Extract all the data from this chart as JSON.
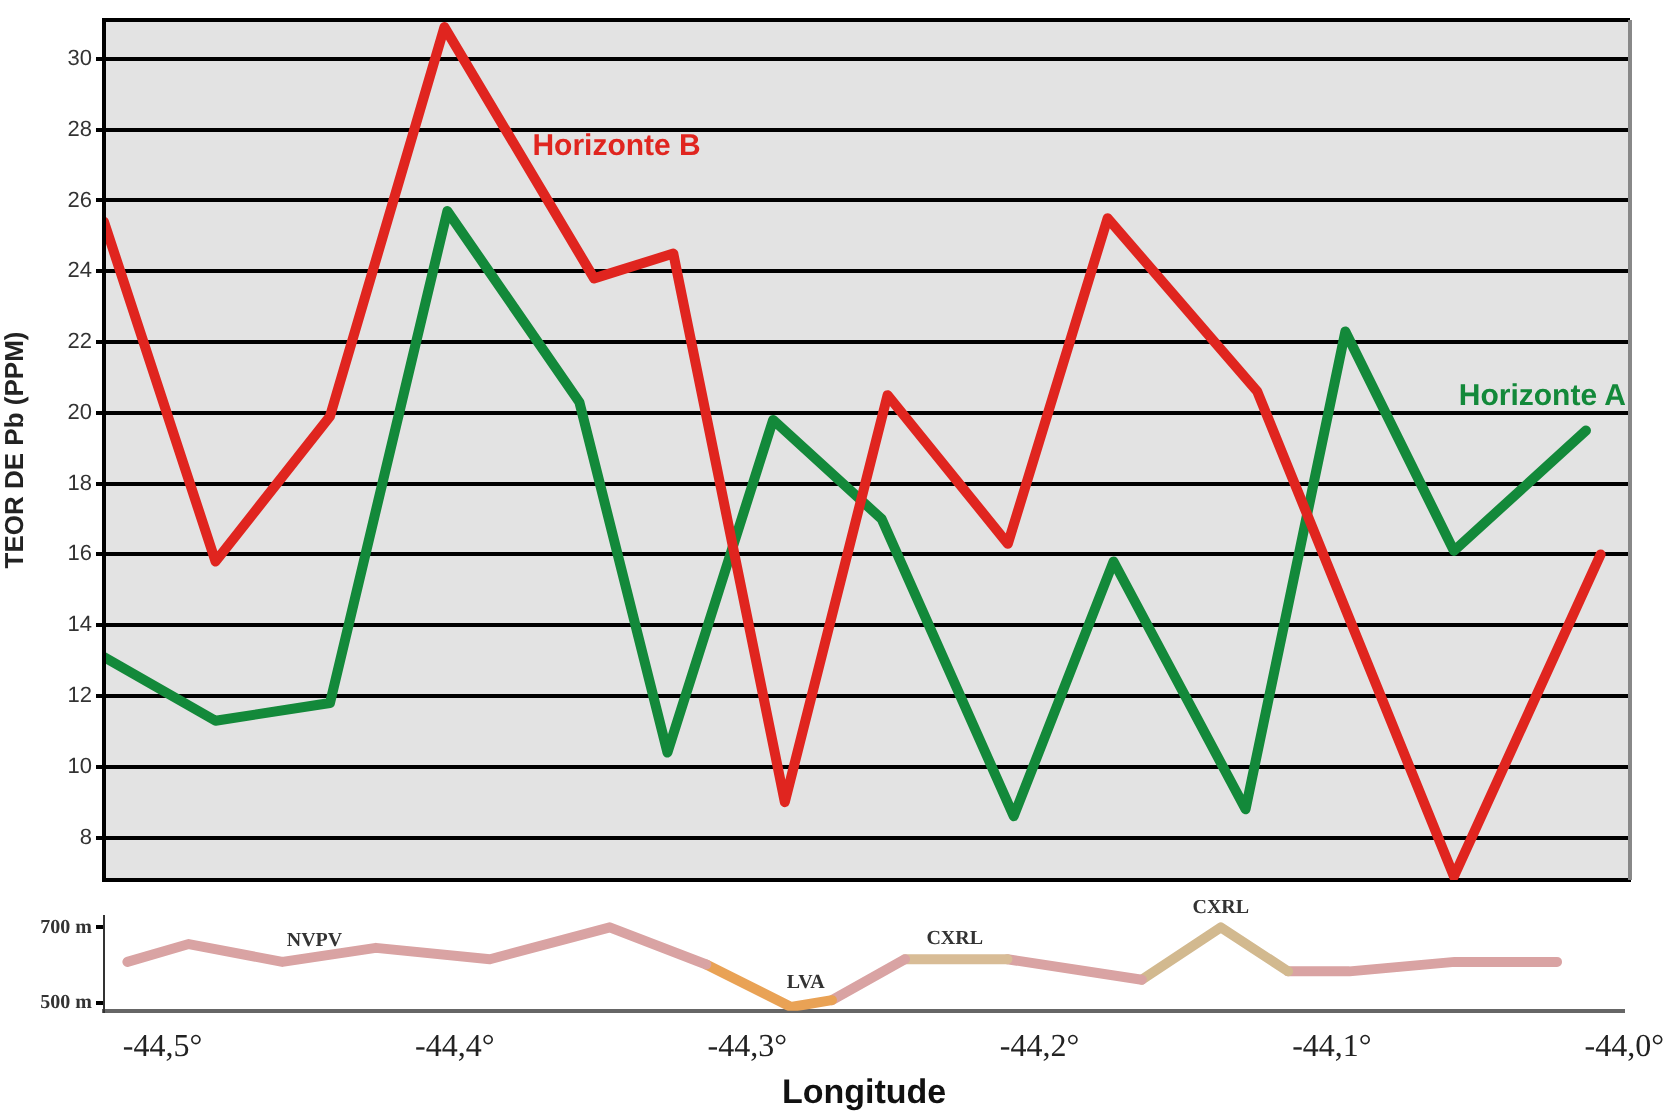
{
  "chart_data": [
    {
      "type": "line",
      "ylabel": "TEOR DE Pb (PPM)",
      "xlim": [
        -44.52,
        -44.0
      ],
      "ylim": [
        6.8,
        31.1
      ],
      "yticks": [
        8,
        10,
        12,
        14,
        16,
        18,
        20,
        22,
        24,
        26,
        28,
        30
      ],
      "grid": "y",
      "tick_labels": "y",
      "series": [
        {
          "name": "Horizonte B",
          "color": "#e0251f",
          "x": [
            -44.52,
            -44.482,
            -44.443,
            -44.404,
            -44.353,
            -44.326,
            -44.288,
            -44.253,
            -44.212,
            -44.178,
            -44.127,
            -44.06,
            -44.01
          ],
          "values": [
            25.4,
            15.8,
            19.9,
            30.9,
            23.8,
            24.5,
            9.0,
            20.5,
            16.3,
            25.5,
            20.6,
            6.9,
            16.0
          ]
        },
        {
          "name": "Horizonte A",
          "color": "#13893a",
          "x": [
            -44.52,
            -44.482,
            -44.443,
            -44.403,
            -44.358,
            -44.328,
            -44.292,
            -44.255,
            -44.21,
            -44.176,
            -44.131,
            -44.097,
            -44.06,
            -44.015
          ],
          "values": [
            13.1,
            11.3,
            11.8,
            25.7,
            20.3,
            10.4,
            19.8,
            17.0,
            8.6,
            15.8,
            8.8,
            22.3,
            16.1,
            19.5
          ]
        }
      ]
    },
    {
      "type": "line",
      "xlabel": "Longitude",
      "xlim": [
        -44.52,
        -44.0
      ],
      "xticks": [
        {
          "value": -44.5,
          "label": "-44,5°"
        },
        {
          "value": -44.4,
          "label": "-44,4°"
        },
        {
          "value": -44.3,
          "label": "-44,3°"
        },
        {
          "value": -44.2,
          "label": "-44,2°"
        },
        {
          "value": -44.1,
          "label": "-44,1°"
        },
        {
          "value": -44.0,
          "label": "-44,0°"
        }
      ],
      "ylim": [
        480,
        730
      ],
      "yticks": [
        {
          "value": 500,
          "label": "500 m"
        },
        {
          "value": 700,
          "label": "700 m"
        }
      ],
      "series": [
        {
          "color": "#d9a3a3",
          "x": [
            -44.512,
            -44.491,
            -44.459,
            -44.427,
            -44.388,
            -44.347,
            -44.314
          ],
          "values": [
            609,
            656,
            609,
            646,
            616,
            700,
            602
          ]
        },
        {
          "color": "#e9a255",
          "x": [
            -44.314,
            -44.285,
            -44.271
          ],
          "values": [
            602,
            490,
            508
          ]
        },
        {
          "color": "#d9a3a3",
          "x": [
            -44.271,
            -44.246
          ],
          "values": [
            508,
            616
          ]
        },
        {
          "color": "#d8bc96",
          "x": [
            -44.246,
            -44.211
          ],
          "values": [
            616,
            616
          ]
        },
        {
          "color": "#d9a3a3",
          "x": [
            -44.211,
            -44.165
          ],
          "values": [
            616,
            562
          ]
        },
        {
          "color": "#d2b98f",
          "x": [
            -44.165,
            -44.138,
            -44.115
          ],
          "values": [
            562,
            700,
            584
          ]
        },
        {
          "color": "#d9a3a3",
          "x": [
            -44.115,
            -44.094,
            -44.058,
            -44.023
          ],
          "values": [
            584,
            584,
            609,
            609
          ]
        }
      ],
      "annotations": [
        {
          "text": "NVPV",
          "x": -44.448,
          "y": 613
        },
        {
          "text": "LVA",
          "x": -44.28,
          "y": 500
        },
        {
          "text": "CXRL",
          "x": -44.229,
          "y": 616
        },
        {
          "text": "CXRL",
          "x": -44.138,
          "y": 700
        }
      ]
    }
  ]
}
